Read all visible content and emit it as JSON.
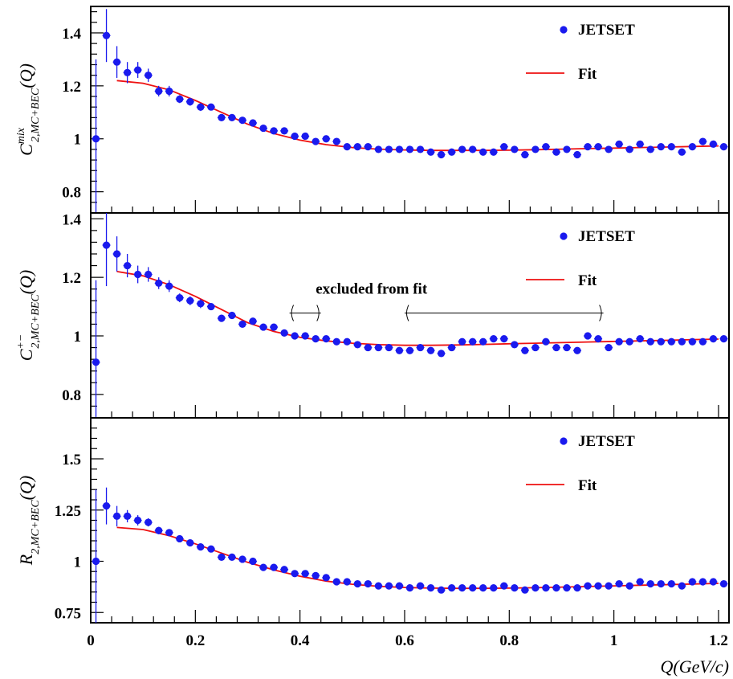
{
  "chart_data": [
    {
      "type": "scatter",
      "ylabel": {
        "main": "C",
        "sup": "mix",
        "sub": "2,MC+BEC",
        "arg": "(Q)"
      },
      "xlim": [
        0,
        1.22
      ],
      "ylim": [
        0.72,
        1.5
      ],
      "yticks": [
        0.8,
        1.0,
        1.2,
        1.4
      ],
      "ytick_labels": [
        "0.8",
        "1",
        "1.2",
        "1.4"
      ],
      "legend": {
        "points": "JETSET",
        "line": "Fit",
        "position": "top-right"
      },
      "series": [
        {
          "name": "JETSET",
          "x": [
            0.01,
            0.03,
            0.05,
            0.07,
            0.09,
            0.11,
            0.13,
            0.15,
            0.17,
            0.19,
            0.21,
            0.23,
            0.25,
            0.27,
            0.29,
            0.31,
            0.33,
            0.35,
            0.37,
            0.39,
            0.41,
            0.43,
            0.45,
            0.47,
            0.49,
            0.51,
            0.53,
            0.55,
            0.57,
            0.59,
            0.61,
            0.63,
            0.65,
            0.67,
            0.69,
            0.71,
            0.73,
            0.75,
            0.77,
            0.79,
            0.81,
            0.83,
            0.85,
            0.87,
            0.89,
            0.91,
            0.93,
            0.95,
            0.97,
            0.99,
            1.01,
            1.03,
            1.05,
            1.07,
            1.09,
            1.11,
            1.13,
            1.15,
            1.17,
            1.19,
            1.21
          ],
          "y": [
            1.0,
            1.39,
            1.29,
            1.25,
            1.26,
            1.24,
            1.18,
            1.18,
            1.15,
            1.14,
            1.12,
            1.12,
            1.08,
            1.08,
            1.07,
            1.06,
            1.04,
            1.03,
            1.03,
            1.01,
            1.01,
            0.99,
            1.0,
            0.99,
            0.97,
            0.97,
            0.97,
            0.96,
            0.96,
            0.96,
            0.96,
            0.96,
            0.95,
            0.94,
            0.95,
            0.96,
            0.96,
            0.95,
            0.95,
            0.97,
            0.96,
            0.94,
            0.96,
            0.97,
            0.95,
            0.96,
            0.94,
            0.97,
            0.97,
            0.96,
            0.98,
            0.96,
            0.98,
            0.96,
            0.97,
            0.97,
            0.95,
            0.97,
            0.99,
            0.98,
            0.97
          ],
          "yerr": [
            0.3,
            0.1,
            0.06,
            0.04,
            0.03,
            0.025,
            0.02,
            0.02,
            0.015,
            0.015,
            0.015,
            0.012,
            0.012,
            0.01,
            0.01,
            0.01,
            0.01,
            0.01,
            0.01,
            0.01,
            0.01,
            0.01,
            0.01,
            0.01,
            0.01,
            0.01,
            0.01,
            0.01,
            0.01,
            0.01,
            0.01,
            0.01,
            0.01,
            0.01,
            0.01,
            0.01,
            0.01,
            0.01,
            0.01,
            0.01,
            0.01,
            0.01,
            0.01,
            0.01,
            0.01,
            0.01,
            0.01,
            0.01,
            0.01,
            0.01,
            0.01,
            0.01,
            0.01,
            0.01,
            0.01,
            0.01,
            0.01,
            0.01,
            0.01,
            0.01,
            0.01
          ]
        },
        {
          "name": "Fit",
          "x": [
            0.05,
            0.1,
            0.15,
            0.2,
            0.25,
            0.3,
            0.35,
            0.4,
            0.45,
            0.5,
            0.55,
            0.6,
            0.65,
            0.7,
            0.75,
            0.8,
            0.85,
            0.9,
            0.95,
            1.0,
            1.05,
            1.1,
            1.15,
            1.2
          ],
          "y": [
            1.22,
            1.21,
            1.185,
            1.145,
            1.1,
            1.055,
            1.02,
            0.995,
            0.978,
            0.967,
            0.961,
            0.958,
            0.956,
            0.956,
            0.956,
            0.957,
            0.959,
            0.961,
            0.963,
            0.965,
            0.967,
            0.969,
            0.971,
            0.973
          ]
        }
      ]
    },
    {
      "type": "scatter",
      "ylabel": {
        "main": "C",
        "sup": "+−",
        "sub": "2,MC+BEC",
        "arg": "(Q)"
      },
      "xlim": [
        0,
        1.22
      ],
      "ylim": [
        0.72,
        1.42
      ],
      "yticks": [
        0.8,
        1.0,
        1.2,
        1.4
      ],
      "ytick_labels": [
        "0.8",
        "1",
        "1.2",
        "1.4"
      ],
      "legend": {
        "points": "JETSET",
        "line": "Fit",
        "position": "top-right"
      },
      "annotation": {
        "text": "excluded from fit",
        "ranges": [
          [
            0.38,
            0.44
          ],
          [
            0.6,
            0.98
          ]
        ],
        "y": 1.1
      },
      "series": [
        {
          "name": "JETSET",
          "x": [
            0.01,
            0.03,
            0.05,
            0.07,
            0.09,
            0.11,
            0.13,
            0.15,
            0.17,
            0.19,
            0.21,
            0.23,
            0.25,
            0.27,
            0.29,
            0.31,
            0.33,
            0.35,
            0.37,
            0.39,
            0.41,
            0.43,
            0.45,
            0.47,
            0.49,
            0.51,
            0.53,
            0.55,
            0.57,
            0.59,
            0.61,
            0.63,
            0.65,
            0.67,
            0.69,
            0.71,
            0.73,
            0.75,
            0.77,
            0.79,
            0.81,
            0.83,
            0.85,
            0.87,
            0.89,
            0.91,
            0.93,
            0.95,
            0.97,
            0.99,
            1.01,
            1.03,
            1.05,
            1.07,
            1.09,
            1.11,
            1.13,
            1.15,
            1.17,
            1.19,
            1.21
          ],
          "y": [
            0.91,
            1.31,
            1.28,
            1.24,
            1.21,
            1.21,
            1.18,
            1.17,
            1.13,
            1.12,
            1.11,
            1.1,
            1.06,
            1.07,
            1.04,
            1.05,
            1.03,
            1.03,
            1.01,
            1.0,
            1.0,
            0.99,
            0.99,
            0.98,
            0.98,
            0.97,
            0.96,
            0.96,
            0.96,
            0.95,
            0.95,
            0.96,
            0.95,
            0.94,
            0.96,
            0.98,
            0.98,
            0.98,
            0.99,
            0.99,
            0.97,
            0.95,
            0.96,
            0.98,
            0.96,
            0.96,
            0.95,
            1.0,
            0.99,
            0.96,
            0.98,
            0.98,
            0.99,
            0.98,
            0.98,
            0.98,
            0.98,
            0.98,
            0.98,
            0.99,
            0.99
          ],
          "yerr": [
            0.28,
            0.14,
            0.06,
            0.04,
            0.03,
            0.025,
            0.02,
            0.02,
            0.015,
            0.015,
            0.015,
            0.012,
            0.012,
            0.01,
            0.01,
            0.01,
            0.01,
            0.01,
            0.01,
            0.01,
            0.01,
            0.01,
            0.01,
            0.01,
            0.01,
            0.01,
            0.01,
            0.01,
            0.01,
            0.01,
            0.01,
            0.01,
            0.01,
            0.01,
            0.01,
            0.01,
            0.01,
            0.01,
            0.01,
            0.01,
            0.01,
            0.01,
            0.01,
            0.01,
            0.01,
            0.01,
            0.01,
            0.01,
            0.01,
            0.01,
            0.01,
            0.01,
            0.01,
            0.01,
            0.01,
            0.01,
            0.01,
            0.01,
            0.01,
            0.01,
            0.01
          ]
        },
        {
          "name": "Fit",
          "x": [
            0.05,
            0.1,
            0.15,
            0.2,
            0.25,
            0.3,
            0.35,
            0.4,
            0.45,
            0.5,
            0.55,
            0.6,
            0.65,
            0.7,
            0.75,
            0.8,
            0.85,
            0.9,
            0.95,
            1.0,
            1.05,
            1.1,
            1.15,
            1.2
          ],
          "y": [
            1.22,
            1.205,
            1.175,
            1.135,
            1.09,
            1.045,
            1.015,
            0.995,
            0.983,
            0.975,
            0.97,
            0.968,
            0.968,
            0.969,
            0.971,
            0.973,
            0.975,
            0.977,
            0.979,
            0.981,
            0.983,
            0.985,
            0.987,
            0.989
          ]
        }
      ]
    },
    {
      "type": "scatter",
      "ylabel": {
        "main": "R",
        "sup": "",
        "sub": "2,MC+BEC",
        "arg": "(Q)"
      },
      "xlabel": "Q(GeV/c)",
      "xlim": [
        0,
        1.22
      ],
      "ylim": [
        0.7,
        1.7
      ],
      "yticks": [
        0.75,
        1.0,
        1.25,
        1.5
      ],
      "ytick_labels": [
        "0.75",
        "1",
        "1.25",
        "1.5"
      ],
      "xticks": [
        0,
        0.2,
        0.4,
        0.6,
        0.8,
        1.0,
        1.2
      ],
      "xtick_labels": [
        "0",
        "0.2",
        "0.4",
        "0.6",
        "0.8",
        "1",
        "1.2"
      ],
      "legend": {
        "points": "JETSET",
        "line": "Fit",
        "position": "top-right"
      },
      "series": [
        {
          "name": "JETSET",
          "x": [
            0.01,
            0.03,
            0.05,
            0.07,
            0.09,
            0.11,
            0.13,
            0.15,
            0.17,
            0.19,
            0.21,
            0.23,
            0.25,
            0.27,
            0.29,
            0.31,
            0.33,
            0.35,
            0.37,
            0.39,
            0.41,
            0.43,
            0.45,
            0.47,
            0.49,
            0.51,
            0.53,
            0.55,
            0.57,
            0.59,
            0.61,
            0.63,
            0.65,
            0.67,
            0.69,
            0.71,
            0.73,
            0.75,
            0.77,
            0.79,
            0.81,
            0.83,
            0.85,
            0.87,
            0.89,
            0.91,
            0.93,
            0.95,
            0.97,
            0.99,
            1.01,
            1.03,
            1.05,
            1.07,
            1.09,
            1.11,
            1.13,
            1.15,
            1.17,
            1.19,
            1.21
          ],
          "y": [
            1.0,
            1.27,
            1.22,
            1.22,
            1.2,
            1.19,
            1.15,
            1.14,
            1.11,
            1.09,
            1.07,
            1.06,
            1.02,
            1.02,
            1.01,
            1.0,
            0.97,
            0.97,
            0.96,
            0.94,
            0.94,
            0.93,
            0.92,
            0.9,
            0.9,
            0.89,
            0.89,
            0.88,
            0.88,
            0.88,
            0.87,
            0.88,
            0.87,
            0.86,
            0.87,
            0.87,
            0.87,
            0.87,
            0.87,
            0.88,
            0.87,
            0.86,
            0.87,
            0.87,
            0.87,
            0.87,
            0.87,
            0.88,
            0.88,
            0.88,
            0.89,
            0.88,
            0.9,
            0.89,
            0.89,
            0.89,
            0.88,
            0.9,
            0.9,
            0.9,
            0.89
          ],
          "yerr": [
            0.35,
            0.09,
            0.05,
            0.03,
            0.025,
            0.02,
            0.018,
            0.015,
            0.012,
            0.012,
            0.01,
            0.01,
            0.01,
            0.01,
            0.01,
            0.01,
            0.01,
            0.01,
            0.01,
            0.01,
            0.01,
            0.01,
            0.01,
            0.01,
            0.01,
            0.01,
            0.01,
            0.01,
            0.01,
            0.01,
            0.01,
            0.01,
            0.01,
            0.01,
            0.01,
            0.01,
            0.01,
            0.01,
            0.01,
            0.01,
            0.01,
            0.01,
            0.01,
            0.01,
            0.01,
            0.01,
            0.01,
            0.01,
            0.01,
            0.01,
            0.01,
            0.01,
            0.01,
            0.01,
            0.01,
            0.01,
            0.01,
            0.01,
            0.01,
            0.01,
            0.01
          ]
        },
        {
          "name": "Fit",
          "x": [
            0.05,
            0.1,
            0.15,
            0.2,
            0.25,
            0.3,
            0.35,
            0.4,
            0.45,
            0.5,
            0.55,
            0.6,
            0.65,
            0.7,
            0.75,
            0.8,
            0.85,
            0.9,
            0.95,
            1.0,
            1.05,
            1.1,
            1.15,
            1.2
          ],
          "y": [
            1.165,
            1.155,
            1.125,
            1.085,
            1.04,
            0.995,
            0.958,
            0.927,
            0.903,
            0.888,
            0.878,
            0.872,
            0.869,
            0.868,
            0.868,
            0.869,
            0.871,
            0.874,
            0.877,
            0.88,
            0.883,
            0.886,
            0.889,
            0.892
          ]
        }
      ]
    }
  ],
  "colors": {
    "points": "#1a1aee",
    "fit": "#ee1111",
    "axis": "#000000"
  }
}
